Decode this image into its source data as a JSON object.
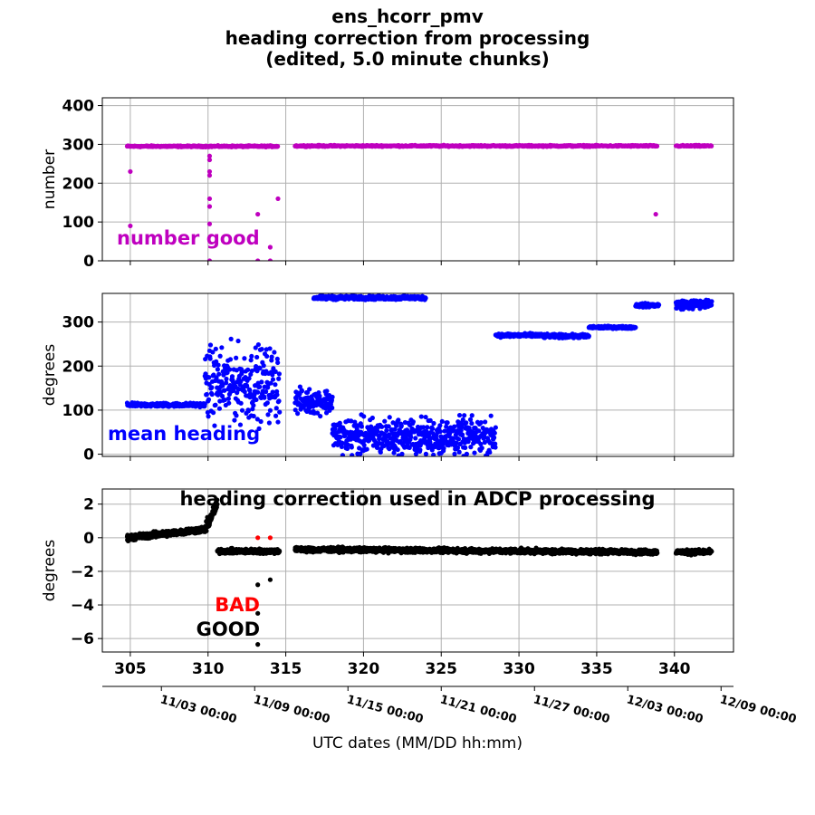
{
  "title_lines": [
    "ens_hcorr_pmv",
    "heading correction from processing",
    "(edited, 5.0 minute chunks)"
  ],
  "xlabel": "UTC dates (MM/DD hh:mm)",
  "x_ticks": [
    305,
    310,
    315,
    320,
    325,
    330,
    335,
    340
  ],
  "xlim": [
    303.2,
    343.8
  ],
  "date_ticks": [
    {
      "day": 307.0,
      "label": "11/03 00:00"
    },
    {
      "day": 313.0,
      "label": "11/09 00:00"
    },
    {
      "day": 319.0,
      "label": "11/15 00:00"
    },
    {
      "day": 325.0,
      "label": "11/21 00:00"
    },
    {
      "day": 331.0,
      "label": "11/27 00:00"
    },
    {
      "day": 337.0,
      "label": "12/03 00:00"
    },
    {
      "day": 343.0,
      "label": "12/09 00:00"
    }
  ],
  "colors": {
    "number": "#bf00bf",
    "heading": "#0000ff",
    "good": "#000000",
    "bad": "#ff0000"
  },
  "chart_data": [
    {
      "type": "scatter",
      "panel": "number",
      "ylabel": "number",
      "ylim": [
        0,
        420
      ],
      "y_ticks": [
        0,
        100,
        200,
        300,
        400
      ],
      "annotation": "number good",
      "grid": true,
      "segments": [
        {
          "x_start": 304.8,
          "x_end": 314.5,
          "y": 295
        },
        {
          "x_start": 315.6,
          "x_end": 338.9,
          "y": 296
        },
        {
          "x_start": 340.1,
          "x_end": 342.4,
          "y": 296
        }
      ],
      "outliers": [
        [
          305.0,
          230
        ],
        [
          305.0,
          90
        ],
        [
          310.1,
          270
        ],
        [
          310.1,
          260
        ],
        [
          310.1,
          230
        ],
        [
          310.1,
          220
        ],
        [
          310.1,
          160
        ],
        [
          310.1,
          140
        ],
        [
          310.1,
          95
        ],
        [
          310.1,
          0
        ],
        [
          313.2,
          120
        ],
        [
          313.2,
          0
        ],
        [
          314.0,
          35
        ],
        [
          314.0,
          0
        ],
        [
          314.5,
          160
        ],
        [
          338.8,
          120
        ]
      ]
    },
    {
      "type": "scatter",
      "panel": "heading",
      "ylabel": "degrees",
      "ylim": [
        -5,
        365
      ],
      "y_ticks": [
        0,
        100,
        200,
        300
      ],
      "annotation": "mean heading",
      "grid": true,
      "series": [
        {
          "x_start": 304.8,
          "x_end": 309.8,
          "y": 112,
          "noise": 6
        },
        {
          "x_start": 309.8,
          "x_end": 314.6,
          "y": 160,
          "noise": 120
        },
        {
          "x_start": 315.6,
          "x_end": 318.0,
          "y": 120,
          "noise": 40
        },
        {
          "x_start": 318.0,
          "x_end": 328.5,
          "y": 40,
          "noise": 60
        },
        {
          "x_start": 316.8,
          "x_end": 324.0,
          "y": 355,
          "noise": 6
        },
        {
          "x_start": 328.5,
          "x_end": 331.5,
          "y": 270,
          "noise": 6
        },
        {
          "x_start": 331.5,
          "x_end": 334.5,
          "y": 268,
          "noise": 6
        },
        {
          "x_start": 334.5,
          "x_end": 337.5,
          "y": 288,
          "noise": 4
        },
        {
          "x_start": 337.5,
          "x_end": 339.0,
          "y": 338,
          "noise": 6
        },
        {
          "x_start": 340.1,
          "x_end": 342.4,
          "y": 340,
          "noise": 15
        }
      ]
    },
    {
      "type": "scatter",
      "panel": "correction",
      "ylabel": "degrees",
      "ylim": [
        -6.8,
        2.9
      ],
      "y_ticks": [
        2,
        0,
        -2,
        -4,
        -6
      ],
      "annotation": "heading correction used in ADCP processing",
      "legend": {
        "bad": "BAD",
        "good": "GOOD"
      },
      "grid": true,
      "good_series": [
        {
          "x_start": 304.8,
          "x_end": 309.8,
          "y_start": 0.0,
          "y_end": 0.5,
          "noise": 0.25
        },
        {
          "x_start": 309.8,
          "x_end": 310.6,
          "y_start": 0.5,
          "y_end": 2.0,
          "noise": 0.5
        },
        {
          "x_start": 310.6,
          "x_end": 314.6,
          "y_start": -0.8,
          "y_end": -0.8,
          "noise": 0.2
        },
        {
          "x_start": 315.6,
          "x_end": 338.9,
          "y_start": -0.7,
          "y_end": -0.85,
          "noise": 0.2
        },
        {
          "x_start": 340.1,
          "x_end": 342.4,
          "y_start": -0.85,
          "y_end": -0.85,
          "noise": 0.2
        }
      ],
      "good_outliers": [
        [
          313.2,
          -4.5
        ],
        [
          313.2,
          -6.35
        ],
        [
          314.0,
          -2.5
        ],
        [
          313.2,
          -2.8
        ]
      ],
      "bad_points": [
        [
          313.2,
          0.0
        ],
        [
          314.0,
          0.0
        ]
      ]
    }
  ]
}
